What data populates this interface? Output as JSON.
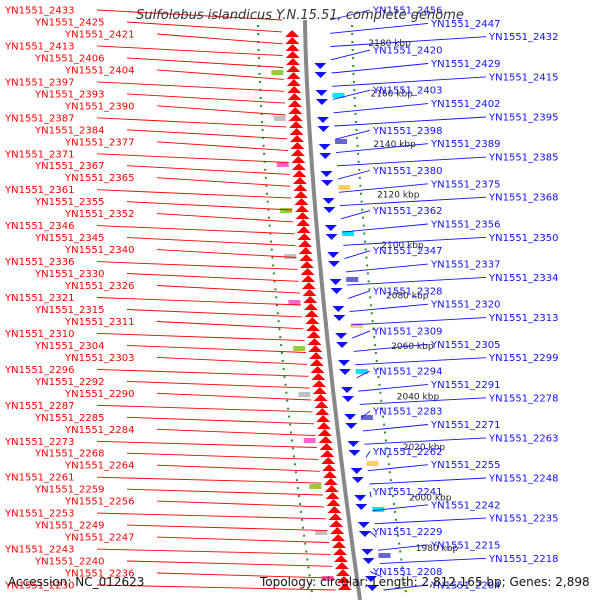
{
  "title": "Sulfolobus islandicus Y.N.15.51, complete genome",
  "footer": {
    "accession": "Accession: NC_012623",
    "summary": "Topology: circular; Length: 2,812,165 bp; Genes: 2,898"
  },
  "colors": {
    "forward": "#ff0000",
    "reverse": "#1010ff",
    "backbone": "#888888",
    "ticks": "#2e8b2e"
  },
  "kbp_markers": [
    "2180 kbp",
    "2160 kbp",
    "2140 kbp",
    "2120 kbp",
    "2100 kbp",
    "2080 kbp",
    "2060 kbp",
    "2040 kbp",
    "2020 kbp",
    "2000 kbp",
    "1980 kbp"
  ],
  "left_labels": [
    "YN1551_2433",
    "YN1551_2425",
    "YN1551_2421",
    "YN1551_2413",
    "YN1551_2406",
    "YN1551_2404",
    "YN1551_2397",
    "YN1551_2393",
    "YN1551_2390",
    "YN1551_2387",
    "YN1551_2384",
    "YN1551_2377",
    "YN1551_2371",
    "YN1551_2367",
    "YN1551_2365",
    "YN1551_2361",
    "YN1551_2355",
    "YN1551_2352",
    "YN1551_2346",
    "YN1551_2345",
    "YN1551_2340",
    "YN1551_2336",
    "YN1551_2330",
    "YN1551_2326",
    "YN1551_2321",
    "YN1551_2315",
    "YN1551_2311",
    "YN1551_2310",
    "YN1551_2304",
    "YN1551_2303",
    "YN1551_2296",
    "YN1551_2292",
    "YN1551_2290",
    "YN1551_2287",
    "YN1551_2285",
    "YN1551_2284",
    "YN1551_2273",
    "YN1551_2268",
    "YN1551_2264",
    "YN1551_2261",
    "YN1551_2259",
    "YN1551_2256",
    "YN1551_2253",
    "YN1551_2249",
    "YN1551_2247",
    "YN1551_2243",
    "YN1551_2240",
    "YN1551_2236",
    "YN1551_2230"
  ],
  "right_labels": [
    "YN1551_2456",
    "YN1551_2447",
    "YN1551_2432",
    "YN1551_2420",
    "YN1551_2429",
    "YN1551_2415",
    "YN1551_2403",
    "YN1551_2402",
    "YN1551_2395",
    "YN1551_2398",
    "YN1551_2389",
    "YN1551_2385",
    "YN1551_2380",
    "YN1551_2375",
    "YN1551_2368",
    "YN1551_2362",
    "YN1551_2356",
    "YN1551_2350",
    "YN1551_2347",
    "YN1551_2337",
    "YN1551_2334",
    "YN1551_2328",
    "YN1551_2320",
    "YN1551_2313",
    "YN1551_2309",
    "YN1551_2305",
    "YN1551_2299",
    "YN1551_2294",
    "YN1551_2291",
    "YN1551_2278",
    "YN1551_2283",
    "YN1551_2271",
    "YN1551_2263",
    "YN1551_2262",
    "YN1551_2255",
    "YN1551_2248",
    "YN1551_2241",
    "YN1551_2242",
    "YN1551_2235",
    "YN1551_2229",
    "YN1551_2215",
    "YN1551_2218",
    "YN1551_2208",
    "YN1551_2204"
  ]
}
